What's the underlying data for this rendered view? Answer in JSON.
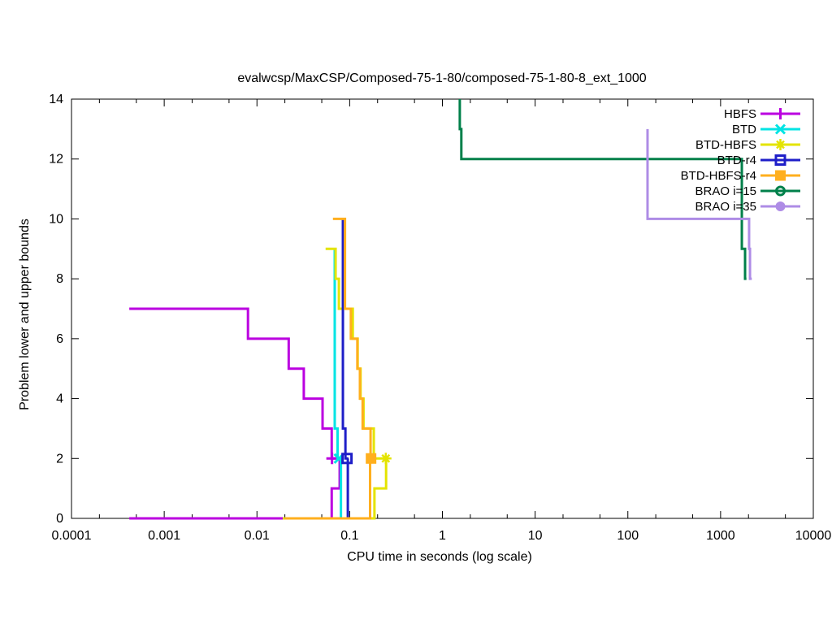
{
  "title": "evalwcsp/MaxCSP/Composed-75-1-80/composed-75-1-80-8_ext_1000",
  "x_axis": {
    "label": "CPU time in seconds (log scale)",
    "scale": "log",
    "tick_labels": [
      "0.0001",
      "0.001",
      "0.01",
      "0.1",
      "1",
      "10",
      "100",
      "1000",
      "10000"
    ]
  },
  "y_axis": {
    "label": "Problem lower and upper bounds",
    "tick_labels": [
      "0",
      "2",
      "4",
      "6",
      "8",
      "10",
      "12",
      "14"
    ]
  },
  "chart_data": {
    "type": "line",
    "title": "evalwcsp/MaxCSP/Composed-75-1-80/composed-75-1-80-8_ext_1000",
    "xlabel": "CPU time in seconds (log scale)",
    "ylabel": "Problem lower and upper bounds",
    "xscale": "log",
    "xlim": [
      0.0001,
      10000
    ],
    "ylim": [
      0,
      14
    ],
    "grid": false,
    "legend_position": "top-right",
    "note": "Each solver plotted as descending upper-bound staircase and ascending lower-bound staircase; point marker where bounds meet (optimum = 2).",
    "series": [
      {
        "name": "HBFS",
        "color": "#BB00E0",
        "marker": "plus",
        "upper_bound": [
          [
            0.00042,
            7
          ],
          [
            0.008,
            7
          ],
          [
            0.008,
            6
          ],
          [
            0.022,
            6
          ],
          [
            0.022,
            5
          ],
          [
            0.032,
            5
          ],
          [
            0.032,
            4
          ],
          [
            0.051,
            4
          ],
          [
            0.051,
            3
          ],
          [
            0.064,
            3
          ],
          [
            0.064,
            2
          ],
          [
            0.078,
            2
          ]
        ],
        "lower_bound": [
          [
            0.00042,
            0
          ],
          [
            0.064,
            0
          ],
          [
            0.064,
            1
          ],
          [
            0.078,
            1
          ],
          [
            0.078,
            2
          ]
        ],
        "solved_at": [
          0.0645,
          2
        ]
      },
      {
        "name": "BTD",
        "color": "#00E4E4",
        "marker": "cross",
        "upper_bound": [
          [
            0.069,
            9
          ],
          [
            0.069,
            3
          ],
          [
            0.074,
            3
          ],
          [
            0.074,
            2
          ],
          [
            0.081,
            2
          ]
        ],
        "lower_bound": [
          [
            0.02,
            0
          ],
          [
            0.0805,
            0
          ],
          [
            0.0805,
            2
          ]
        ],
        "solved_at": [
          0.0765,
          2
        ]
      },
      {
        "name": "BTD-HBFS",
        "color": "#E4E400",
        "marker": "asterisk",
        "upper_bound": [
          [
            0.055,
            9
          ],
          [
            0.0705,
            9
          ],
          [
            0.0705,
            8
          ],
          [
            0.0765,
            8
          ],
          [
            0.0765,
            7
          ],
          [
            0.108,
            7
          ],
          [
            0.108,
            6
          ],
          [
            0.122,
            6
          ],
          [
            0.122,
            5
          ],
          [
            0.131,
            5
          ],
          [
            0.131,
            4
          ],
          [
            0.141,
            4
          ],
          [
            0.141,
            3
          ],
          [
            0.182,
            3
          ],
          [
            0.182,
            2
          ],
          [
            0.248,
            2
          ]
        ],
        "lower_bound": [
          [
            0.019,
            0
          ],
          [
            0.185,
            0
          ],
          [
            0.185,
            1
          ],
          [
            0.247,
            1
          ],
          [
            0.247,
            2
          ]
        ],
        "solved_at": [
          0.245,
          2
        ]
      },
      {
        "name": "BTD-r4",
        "color": "#1E1EC8",
        "marker": "open-square",
        "upper_bound": [
          [
            0.0845,
            10
          ],
          [
            0.0845,
            3
          ],
          [
            0.09,
            3
          ],
          [
            0.09,
            2
          ],
          [
            0.097,
            2
          ]
        ],
        "lower_bound": [
          [
            0.02,
            0
          ],
          [
            0.0955,
            0
          ],
          [
            0.0955,
            2
          ]
        ],
        "solved_at": [
          0.0936,
          2
        ]
      },
      {
        "name": "BTD-HBFS-r4",
        "color": "#FFAF1E",
        "marker": "filled-square",
        "upper_bound": [
          [
            0.066,
            10
          ],
          [
            0.089,
            10
          ],
          [
            0.089,
            7
          ],
          [
            0.103,
            7
          ],
          [
            0.103,
            6
          ],
          [
            0.121,
            6
          ],
          [
            0.121,
            5
          ],
          [
            0.129,
            5
          ],
          [
            0.129,
            4
          ],
          [
            0.138,
            4
          ],
          [
            0.138,
            3
          ],
          [
            0.168,
            3
          ],
          [
            0.168,
            2
          ],
          [
            0.186,
            2
          ]
        ],
        "lower_bound": [
          [
            0.02,
            0
          ],
          [
            0.166,
            0
          ],
          [
            0.166,
            2
          ]
        ],
        "solved_at": [
          0.17,
          2
        ]
      },
      {
        "name": "BRAO i=15",
        "color": "#00804A",
        "marker": "open-circle",
        "upper_bound": [
          [
            1.54,
            14
          ],
          [
            1.54,
            13
          ],
          [
            1.6,
            13
          ],
          [
            1.6,
            12
          ],
          [
            1695,
            12
          ],
          [
            1695,
            9
          ],
          [
            1837,
            9
          ],
          [
            1837,
            8
          ],
          [
            1900,
            8
          ]
        ],
        "lower_bound": null,
        "solved_at": null
      },
      {
        "name": "BRAO i=35",
        "color": "#AE8CE6",
        "marker": "filled-circle",
        "upper_bound": [
          [
            163,
            13
          ],
          [
            163,
            10
          ],
          [
            2030,
            10
          ],
          [
            2030,
            9
          ],
          [
            2075,
            9
          ],
          [
            2075,
            8
          ],
          [
            2170,
            8
          ]
        ],
        "lower_bound": null,
        "solved_at": null
      }
    ]
  },
  "legend": {
    "entries": [
      {
        "label": "HBFS"
      },
      {
        "label": "BTD"
      },
      {
        "label": "BTD-HBFS"
      },
      {
        "label": "BTD-r4"
      },
      {
        "label": "BTD-HBFS-r4"
      },
      {
        "label": "BRAO i=15"
      },
      {
        "label": "BRAO i=35"
      }
    ]
  }
}
